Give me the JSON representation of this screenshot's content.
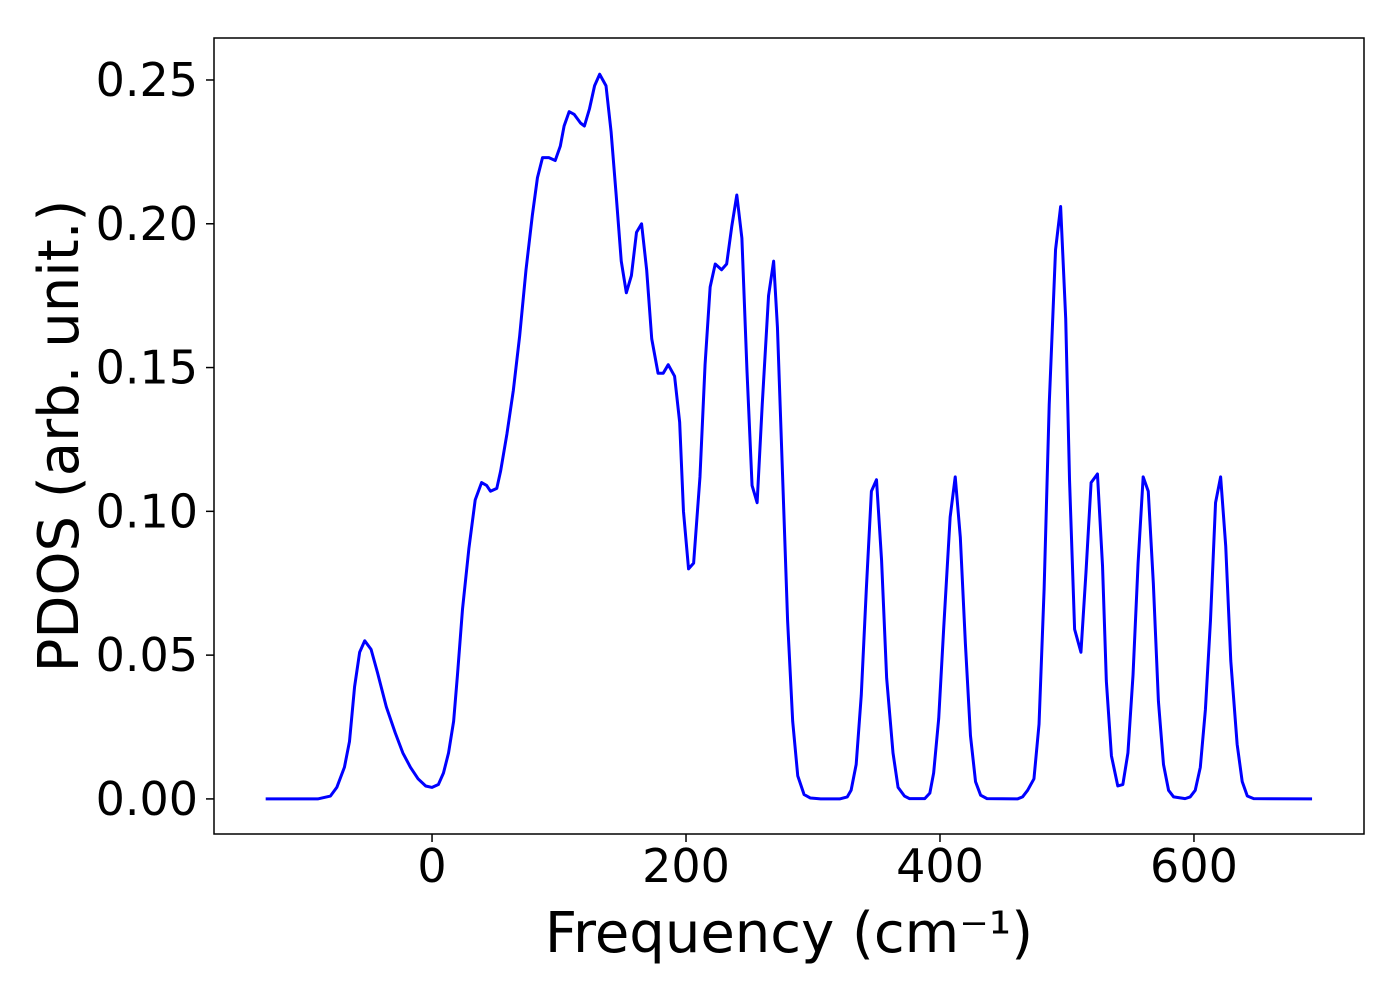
{
  "chart_data": {
    "type": "line",
    "xlabel": "Frequency (cm⁻¹)",
    "ylabel": "PDOS (arb. unit.)",
    "x": [
      -131,
      -90,
      -80,
      -75,
      -69,
      -65,
      -61,
      -57,
      -53,
      -48,
      -43,
      -36,
      -29,
      -23,
      -17,
      -11,
      -5,
      0,
      5,
      9,
      13,
      17,
      20,
      24,
      29,
      34,
      39,
      43,
      46,
      51,
      54,
      59,
      64,
      69,
      74,
      79,
      83,
      87,
      92,
      97,
      101,
      104,
      108,
      112,
      117,
      120,
      124,
      128,
      132,
      137,
      141,
      145,
      149,
      153,
      157,
      161,
      165,
      169,
      173,
      178,
      182,
      186,
      191,
      195,
      198,
      202,
      206,
      211,
      215,
      219,
      223,
      228,
      232,
      236,
      240,
      244,
      248,
      252,
      256,
      260,
      265,
      269,
      272,
      276,
      280,
      284,
      288,
      293,
      298,
      306,
      321,
      327,
      330,
      334,
      338,
      342,
      346,
      350,
      354,
      358,
      363,
      367,
      372,
      376,
      388,
      392,
      395,
      399,
      403,
      408,
      412,
      416,
      420,
      424,
      428,
      432,
      437,
      461,
      465,
      469,
      474,
      478,
      482,
      486,
      491,
      495,
      499,
      502,
      506,
      511,
      515,
      519,
      524,
      528,
      531,
      535,
      540,
      544,
      548,
      552,
      556,
      560,
      564,
      568,
      572,
      576,
      580,
      584,
      593,
      597,
      601,
      605,
      609,
      613,
      617,
      621,
      625,
      629,
      634,
      638,
      642,
      647,
      693
    ],
    "values": [
      0,
      0,
      0.001,
      0.004,
      0.011,
      0.02,
      0.039,
      0.051,
      0.055,
      0.052,
      0.044,
      0.032,
      0.023,
      0.016,
      0.011,
      0.007,
      0.0045,
      0.004,
      0.005,
      0.009,
      0.016,
      0.027,
      0.043,
      0.066,
      0.087,
      0.104,
      0.11,
      0.109,
      0.107,
      0.108,
      0.114,
      0.127,
      0.142,
      0.161,
      0.184,
      0.203,
      0.216,
      0.223,
      0.223,
      0.222,
      0.227,
      0.234,
      0.239,
      0.238,
      0.235,
      0.234,
      0.24,
      0.248,
      0.252,
      0.248,
      0.232,
      0.21,
      0.187,
      0.176,
      0.182,
      0.197,
      0.2,
      0.184,
      0.16,
      0.148,
      0.148,
      0.151,
      0.147,
      0.131,
      0.1,
      0.08,
      0.082,
      0.112,
      0.151,
      0.178,
      0.186,
      0.184,
      0.186,
      0.199,
      0.21,
      0.195,
      0.149,
      0.109,
      0.103,
      0.137,
      0.175,
      0.187,
      0.164,
      0.113,
      0.062,
      0.027,
      0.008,
      0.0015,
      0.0003,
      0,
      0,
      0.0007,
      0.003,
      0.012,
      0.036,
      0.073,
      0.107,
      0.111,
      0.083,
      0.042,
      0.016,
      0.004,
      0.001,
      0.0001,
      0.0001,
      0.002,
      0.009,
      0.028,
      0.06,
      0.098,
      0.112,
      0.091,
      0.054,
      0.022,
      0.006,
      0.0013,
      0.0001,
      0,
      0.0007,
      0.003,
      0.007,
      0.026,
      0.073,
      0.137,
      0.191,
      0.206,
      0.167,
      0.111,
      0.059,
      0.051,
      0.079,
      0.11,
      0.113,
      0.081,
      0.041,
      0.015,
      0.0045,
      0.005,
      0.016,
      0.043,
      0.082,
      0.112,
      0.107,
      0.075,
      0.034,
      0.012,
      0.003,
      0.0007,
      0.0001,
      0.0007,
      0.003,
      0.011,
      0.031,
      0.062,
      0.103,
      0.112,
      0.088,
      0.048,
      0.019,
      0.006,
      0.001,
      0.0001,
      0
    ],
    "color": "#0000ff",
    "xlim": [
      -171.7,
      733.9
    ],
    "ylim": [
      -0.0122,
      0.2646
    ],
    "xticks": [
      0,
      200,
      400,
      600
    ],
    "yticks": [
      {
        "value": 0,
        "label": "0.00"
      },
      0.05,
      {
        "value": 0.1,
        "label": "0.10"
      },
      0.15,
      {
        "value": 0.2,
        "label": "0.20"
      },
      0.25
    ],
    "grid": false
  }
}
